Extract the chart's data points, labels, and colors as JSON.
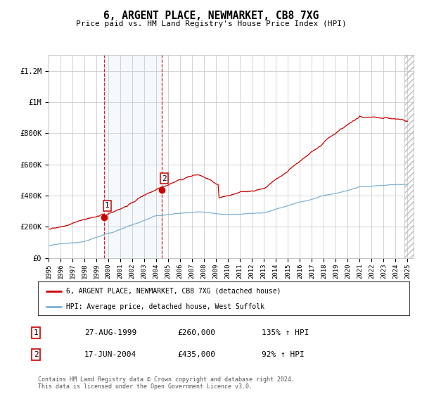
{
  "title": "6, ARGENT PLACE, NEWMARKET, CB8 7XG",
  "subtitle": "Price paid vs. HM Land Registry's House Price Index (HPI)",
  "ylabel_ticks": [
    "£0",
    "£200K",
    "£400K",
    "£600K",
    "£800K",
    "£1M",
    "£1.2M"
  ],
  "ytick_values": [
    0,
    200000,
    400000,
    600000,
    800000,
    1000000,
    1200000
  ],
  "ylim": [
    0,
    1300000
  ],
  "xlim_start": 1995.0,
  "xlim_end": 2025.5,
  "red_line_color": "#cc0000",
  "blue_line_color": "#7eb0d5",
  "purchase1_x": 1999.65,
  "purchase1_y": 260000,
  "purchase1_label": "1",
  "purchase2_x": 2004.46,
  "purchase2_y": 435000,
  "purchase2_label": "2",
  "shaded_region_start": 1999.65,
  "shaded_region_end": 2004.46,
  "legend_line1": "6, ARGENT PLACE, NEWMARKET, CB8 7XG (detached house)",
  "legend_line2": "HPI: Average price, detached house, West Suffolk",
  "table_row1_num": "1",
  "table_row1_date": "27-AUG-1999",
  "table_row1_price": "£260,000",
  "table_row1_hpi": "135% ↑ HPI",
  "table_row2_num": "2",
  "table_row2_date": "17-JUN-2004",
  "table_row2_price": "£435,000",
  "table_row2_hpi": "92% ↑ HPI",
  "footer": "Contains HM Land Registry data © Crown copyright and database right 2024.\nThis data is licensed under the Open Government Licence v3.0.",
  "background_color": "#ffffff",
  "plot_bg_color": "#ffffff",
  "grid_color": "#cccccc"
}
